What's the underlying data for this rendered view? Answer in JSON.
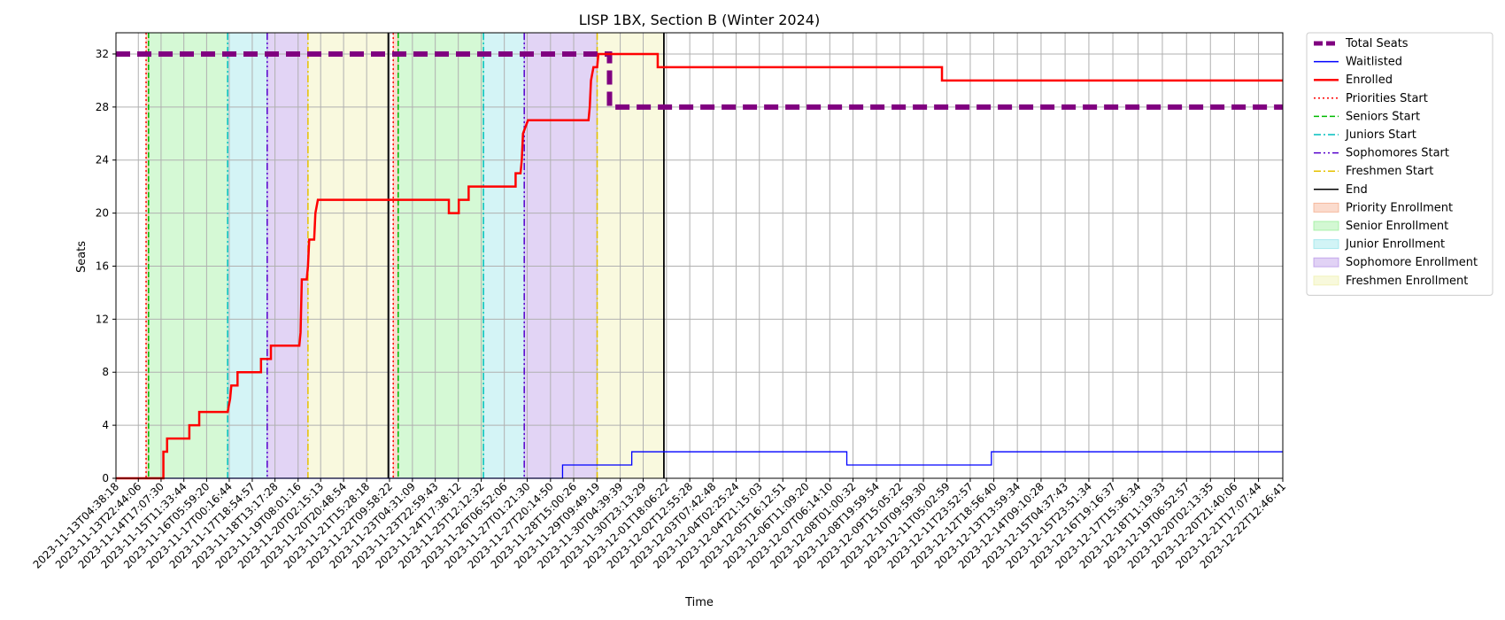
{
  "chart_data": {
    "type": "line",
    "title": "LISP 1BX, Section B (Winter 2024)",
    "xlabel": "Time",
    "ylabel": "Seats",
    "ylim": [
      0,
      33.6
    ],
    "yticks": [
      0,
      4,
      8,
      12,
      16,
      20,
      24,
      28,
      32
    ],
    "grid": true,
    "legend_position": "outside-right",
    "x_start": "2023-11-13T04:38:18",
    "x_end": "2023-12-22T12:46:41",
    "x_ticks": [
      "2023-11-13T04:38:18",
      "2023-11-13T22:44:06",
      "2023-11-14T17:07:30",
      "2023-11-15T11:33:44",
      "2023-11-16T05:59:20",
      "2023-11-17T00:16:44",
      "2023-11-17T18:54:57",
      "2023-11-18T13:17:28",
      "2023-11-19T08:01:16",
      "2023-11-20T02:15:13",
      "2023-11-20T20:48:54",
      "2023-11-21T15:28:18",
      "2023-11-22T09:58:22",
      "2023-11-23T04:31:09",
      "2023-11-23T22:59:43",
      "2023-11-24T17:38:12",
      "2023-11-25T12:12:32",
      "2023-11-26T06:52:06",
      "2023-11-27T01:21:30",
      "2023-11-27T20:14:50",
      "2023-11-28T15:00:26",
      "2023-11-29T09:49:19",
      "2023-11-30T04:39:39",
      "2023-11-30T23:13:29",
      "2023-12-01T18:06:22",
      "2023-12-02T12:55:28",
      "2023-12-03T07:42:48",
      "2023-12-04T02:25:24",
      "2023-12-04T21:15:03",
      "2023-12-05T16:12:51",
      "2023-12-06T11:09:20",
      "2023-12-07T06:14:10",
      "2023-12-08T01:00:32",
      "2023-12-08T19:59:54",
      "2023-12-09T15:05:22",
      "2023-12-10T09:59:30",
      "2023-12-11T05:02:59",
      "2023-12-11T23:52:57",
      "2023-12-12T18:56:40",
      "2023-12-13T13:59:34",
      "2023-12-14T09:10:28",
      "2023-12-15T04:37:43",
      "2023-12-15T23:51:34",
      "2023-12-16T19:16:37",
      "2023-12-17T15:36:34",
      "2023-12-18T11:19:33",
      "2023-12-19T06:52:57",
      "2023-12-20T02:13:35",
      "2023-12-20T21:40:06",
      "2023-12-21T17:07:44",
      "2023-12-22T12:46:41"
    ],
    "series": [
      {
        "name": "Total Seats",
        "color": "#800080",
        "style": "dashed-thick",
        "points": [
          {
            "x": "2023-11-13T04:38:18",
            "y": 32
          },
          {
            "x": "2023-11-29T20:00:00",
            "y": 32
          },
          {
            "x": "2023-11-29T20:00:00",
            "y": 28
          },
          {
            "x": "2023-12-22T12:46:41",
            "y": 28
          }
        ]
      },
      {
        "name": "Waitlisted",
        "color": "#0000ff",
        "style": "solid-thin",
        "points": [
          {
            "x": "2023-11-13T04:38:18",
            "y": 0
          },
          {
            "x": "2023-11-28T06:00:00",
            "y": 0
          },
          {
            "x": "2023-11-28T06:00:00",
            "y": 1
          },
          {
            "x": "2023-11-30T14:00:00",
            "y": 1
          },
          {
            "x": "2023-11-30T14:00:00",
            "y": 2
          },
          {
            "x": "2023-12-07T20:00:00",
            "y": 2
          },
          {
            "x": "2023-12-07T20:00:00",
            "y": 1
          },
          {
            "x": "2023-12-12T17:00:00",
            "y": 1
          },
          {
            "x": "2023-12-12T17:00:00",
            "y": 2
          },
          {
            "x": "2023-12-22T12:46:41",
            "y": 2
          }
        ]
      },
      {
        "name": "Enrolled",
        "color": "#ff0000",
        "style": "solid-thick",
        "points": [
          {
            "x": "2023-11-13T04:38:18",
            "y": 0
          },
          {
            "x": "2023-11-14T19:00:00",
            "y": 0
          },
          {
            "x": "2023-11-14T19:00:00",
            "y": 2
          },
          {
            "x": "2023-11-14T22:00:00",
            "y": 2
          },
          {
            "x": "2023-11-14T22:00:00",
            "y": 3
          },
          {
            "x": "2023-11-15T16:00:00",
            "y": 3
          },
          {
            "x": "2023-11-15T16:00:00",
            "y": 4
          },
          {
            "x": "2023-11-16T00:00:00",
            "y": 4
          },
          {
            "x": "2023-11-16T00:00:00",
            "y": 5
          },
          {
            "x": "2023-11-16T23:00:00",
            "y": 5
          },
          {
            "x": "2023-11-17T01:00:00",
            "y": 6
          },
          {
            "x": "2023-11-17T02:00:00",
            "y": 7
          },
          {
            "x": "2023-11-17T07:00:00",
            "y": 7
          },
          {
            "x": "2023-11-17T07:00:00",
            "y": 8
          },
          {
            "x": "2023-11-18T02:00:00",
            "y": 8
          },
          {
            "x": "2023-11-18T02:00:00",
            "y": 9
          },
          {
            "x": "2023-11-18T10:00:00",
            "y": 9
          },
          {
            "x": "2023-11-18T10:00:00",
            "y": 10
          },
          {
            "x": "2023-11-19T09:00:00",
            "y": 10
          },
          {
            "x": "2023-11-19T10:00:00",
            "y": 11
          },
          {
            "x": "2023-11-19T11:00:00",
            "y": 15
          },
          {
            "x": "2023-11-19T15:00:00",
            "y": 15
          },
          {
            "x": "2023-11-19T16:00:00",
            "y": 16
          },
          {
            "x": "2023-11-19T17:00:00",
            "y": 18
          },
          {
            "x": "2023-11-19T21:00:00",
            "y": 18
          },
          {
            "x": "2023-11-19T22:00:00",
            "y": 20
          },
          {
            "x": "2023-11-20T00:00:00",
            "y": 21
          },
          {
            "x": "2023-11-24T10:00:00",
            "y": 21
          },
          {
            "x": "2023-11-24T10:00:00",
            "y": 20
          },
          {
            "x": "2023-11-24T18:00:00",
            "y": 20
          },
          {
            "x": "2023-11-24T18:00:00",
            "y": 21
          },
          {
            "x": "2023-11-25T02:00:00",
            "y": 21
          },
          {
            "x": "2023-11-25T02:00:00",
            "y": 22
          },
          {
            "x": "2023-11-26T16:00:00",
            "y": 22
          },
          {
            "x": "2023-11-26T16:00:00",
            "y": 23
          },
          {
            "x": "2023-11-26T20:00:00",
            "y": 23
          },
          {
            "x": "2023-11-26T21:00:00",
            "y": 24
          },
          {
            "x": "2023-11-26T22:00:00",
            "y": 26
          },
          {
            "x": "2023-11-27T02:00:00",
            "y": 27
          },
          {
            "x": "2023-11-29T03:00:00",
            "y": 27
          },
          {
            "x": "2023-11-29T04:00:00",
            "y": 28
          },
          {
            "x": "2023-11-29T05:00:00",
            "y": 30
          },
          {
            "x": "2023-11-29T07:00:00",
            "y": 31
          },
          {
            "x": "2023-11-29T10:00:00",
            "y": 31
          },
          {
            "x": "2023-11-29T11:00:00",
            "y": 32
          },
          {
            "x": "2023-12-01T11:00:00",
            "y": 32
          },
          {
            "x": "2023-12-01T11:00:00",
            "y": 31
          },
          {
            "x": "2023-12-11T01:00:00",
            "y": 31
          },
          {
            "x": "2023-12-11T01:00:00",
            "y": 30
          },
          {
            "x": "2023-12-22T12:46:41",
            "y": 30
          }
        ]
      }
    ],
    "vlines": [
      {
        "name": "Priorities Start",
        "color": "#ff0000",
        "style": "dotted",
        "times": [
          "2023-11-14T05:00:00",
          "2023-11-22T13:00:00"
        ]
      },
      {
        "name": "Seniors Start",
        "color": "#00bb00",
        "style": "dashed",
        "times": [
          "2023-11-14T07:00:00",
          "2023-11-22T17:00:00"
        ]
      },
      {
        "name": "Juniors Start",
        "color": "#00bfbf",
        "style": "dashdot",
        "times": [
          "2023-11-16T23:00:00",
          "2023-11-25T14:00:00"
        ]
      },
      {
        "name": "Sophomores Start",
        "color": "#5500cc",
        "style": "dashdotdot",
        "times": [
          "2023-11-18T07:00:00",
          "2023-11-26T23:00:00"
        ]
      },
      {
        "name": "Freshmen Start",
        "color": "#e5c100",
        "style": "dashdot",
        "times": [
          "2023-11-19T16:00:00",
          "2023-11-29T10:00:00"
        ]
      },
      {
        "name": "End",
        "color": "#000000",
        "style": "solid",
        "times": [
          "2023-11-22T09:00:00",
          "2023-12-01T16:00:00"
        ]
      }
    ],
    "regions": [
      {
        "name": "Priority Enrollment",
        "color": "#f4a582",
        "spans": [
          [
            "2023-11-14T05:00:00",
            "2023-11-14T07:00:00"
          ],
          [
            "2023-11-22T13:00:00",
            "2023-11-22T17:00:00"
          ]
        ]
      },
      {
        "name": "Senior Enrollment",
        "color": "#90ee90",
        "spans": [
          [
            "2023-11-14T07:00:00",
            "2023-11-16T23:00:00"
          ],
          [
            "2023-11-22T17:00:00",
            "2023-11-25T14:00:00"
          ]
        ]
      },
      {
        "name": "Junior Enrollment",
        "color": "#8fe3e8",
        "spans": [
          [
            "2023-11-16T23:00:00",
            "2023-11-18T07:00:00"
          ],
          [
            "2023-11-25T14:00:00",
            "2023-11-26T23:00:00"
          ]
        ]
      },
      {
        "name": "Sophomore Enrollment",
        "color": "#b48ee6",
        "spans": [
          [
            "2023-11-18T07:00:00",
            "2023-11-19T16:00:00"
          ],
          [
            "2023-11-26T23:00:00",
            "2023-11-29T10:00:00"
          ]
        ]
      },
      {
        "name": "Freshmen Enrollment",
        "color": "#eef0a8",
        "spans": [
          [
            "2023-11-19T16:00:00",
            "2023-11-22T09:00:00"
          ],
          [
            "2023-11-29T10:00:00",
            "2023-12-01T16:00:00"
          ]
        ]
      }
    ]
  }
}
